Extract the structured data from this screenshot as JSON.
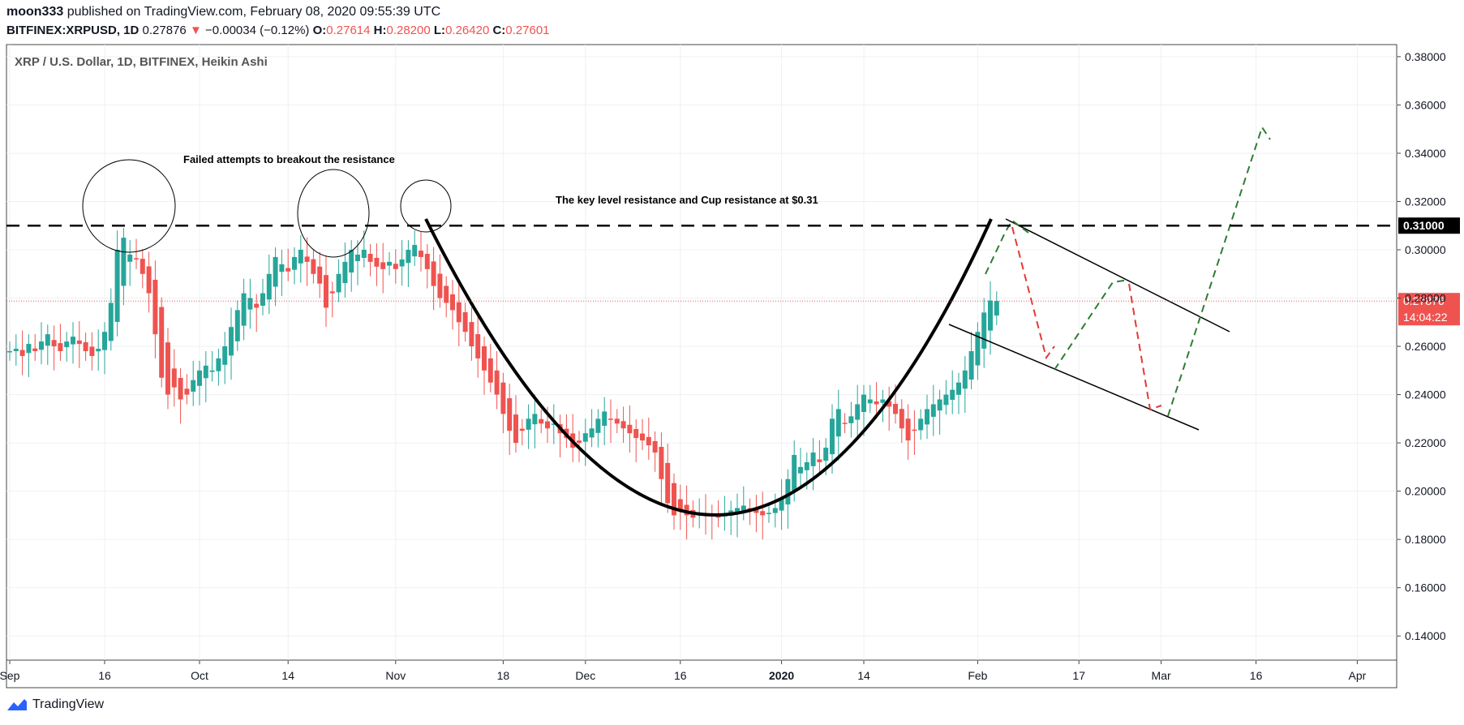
{
  "header": {
    "author": "moon333",
    "published_text": "published on TradingView.com, February 08, 2020 09:55:39 UTC",
    "symbol": "BITFINEX:XRPUSD, 1D",
    "last": "0.27876",
    "change": "−0.00034 (−0.12%)",
    "o_label": "O:",
    "o_value": "0.27614",
    "h_label": "H:",
    "h_value": "0.28200",
    "l_label": "L:",
    "l_value": "0.26420",
    "c_label": "C:",
    "c_value": "0.27601"
  },
  "footer": {
    "brand": "TradingView"
  },
  "colors": {
    "up": "#26a69a",
    "down": "#ef5350",
    "line": "#000000",
    "forecast_up": "#2e7d32",
    "forecast_down": "#e53935"
  },
  "chart_data": {
    "type": "candlestick",
    "title": "XRP / U.S. Dollar, 1D, BITFINEX, Heikin Ashi",
    "ylim": [
      0.13,
      0.385
    ],
    "y_ticks": [
      "0.14000",
      "0.16000",
      "0.18000",
      "0.20000",
      "0.22000",
      "0.24000",
      "0.26000",
      "0.28000",
      "0.30000",
      "0.32000",
      "0.34000",
      "0.36000",
      "0.38000"
    ],
    "y_tick_values": [
      0.14,
      0.16,
      0.18,
      0.2,
      0.22,
      0.24,
      0.26,
      0.28,
      0.3,
      0.32,
      0.34,
      0.36,
      0.38
    ],
    "x_ticks": [
      {
        "label": "Sep",
        "day": 0
      },
      {
        "label": "16",
        "day": 15
      },
      {
        "label": "Oct",
        "day": 30
      },
      {
        "label": "14",
        "day": 44
      },
      {
        "label": "Nov",
        "day": 61
      },
      {
        "label": "18",
        "day": 78
      },
      {
        "label": "Dec",
        "day": 91
      },
      {
        "label": "16",
        "day": 106
      },
      {
        "label": "2020",
        "day": 122
      },
      {
        "label": "14",
        "day": 135
      },
      {
        "label": "Feb",
        "day": 153
      },
      {
        "label": "17",
        "day": 169
      },
      {
        "label": "Mar",
        "day": 182
      },
      {
        "label": "16",
        "day": 197
      },
      {
        "label": "Apr",
        "day": 213
      }
    ],
    "resistance": {
      "value": 0.31,
      "label": "0.31000"
    },
    "last_price": {
      "value": 0.27876,
      "label": "0.27876",
      "countdown": "14:04:22"
    },
    "annotations": {
      "failed": "Failed attempts to breakout the resistance",
      "key_level": "The key level resistance and Cup resistance at $0.31"
    },
    "closes": [
      0.258,
      0.259,
      0.256,
      0.261,
      0.258,
      0.262,
      0.265,
      0.26,
      0.258,
      0.262,
      0.264,
      0.261,
      0.258,
      0.256,
      0.259,
      0.266,
      0.278,
      0.3,
      0.305,
      0.298,
      0.296,
      0.29,
      0.282,
      0.265,
      0.247,
      0.24,
      0.243,
      0.238,
      0.24,
      0.246,
      0.25,
      0.252,
      0.25,
      0.255,
      0.26,
      0.268,
      0.275,
      0.282,
      0.28,
      0.276,
      0.282,
      0.29,
      0.297,
      0.294,
      0.291,
      0.297,
      0.3,
      0.295,
      0.29,
      0.286,
      0.276,
      0.282,
      0.29,
      0.295,
      0.3,
      0.298,
      0.3,
      0.295,
      0.293,
      0.292,
      0.295,
      0.292,
      0.296,
      0.3,
      0.302,
      0.297,
      0.292,
      0.285,
      0.28,
      0.278,
      0.275,
      0.27,
      0.266,
      0.26,
      0.255,
      0.25,
      0.245,
      0.24,
      0.232,
      0.225,
      0.22,
      0.225,
      0.23,
      0.232,
      0.228,
      0.226,
      0.228,
      0.224,
      0.222,
      0.218,
      0.22,
      0.224,
      0.226,
      0.23,
      0.233,
      0.23,
      0.228,
      0.226,
      0.224,
      0.222,
      0.221,
      0.219,
      0.216,
      0.205,
      0.195,
      0.19,
      0.192,
      0.19,
      0.189,
      0.191,
      0.19,
      0.19,
      0.189,
      0.19,
      0.192,
      0.193,
      0.194,
      0.192,
      0.191,
      0.19,
      0.191,
      0.193,
      0.197,
      0.205,
      0.215,
      0.21,
      0.212,
      0.216,
      0.212,
      0.218,
      0.23,
      0.234,
      0.228,
      0.231,
      0.236,
      0.24,
      0.238,
      0.236,
      0.238,
      0.235,
      0.232,
      0.226,
      0.221,
      0.225,
      0.23,
      0.234,
      0.236,
      0.238,
      0.24,
      0.242,
      0.245,
      0.25,
      0.258,
      0.266,
      0.274,
      0.279,
      0.2788
    ]
  }
}
